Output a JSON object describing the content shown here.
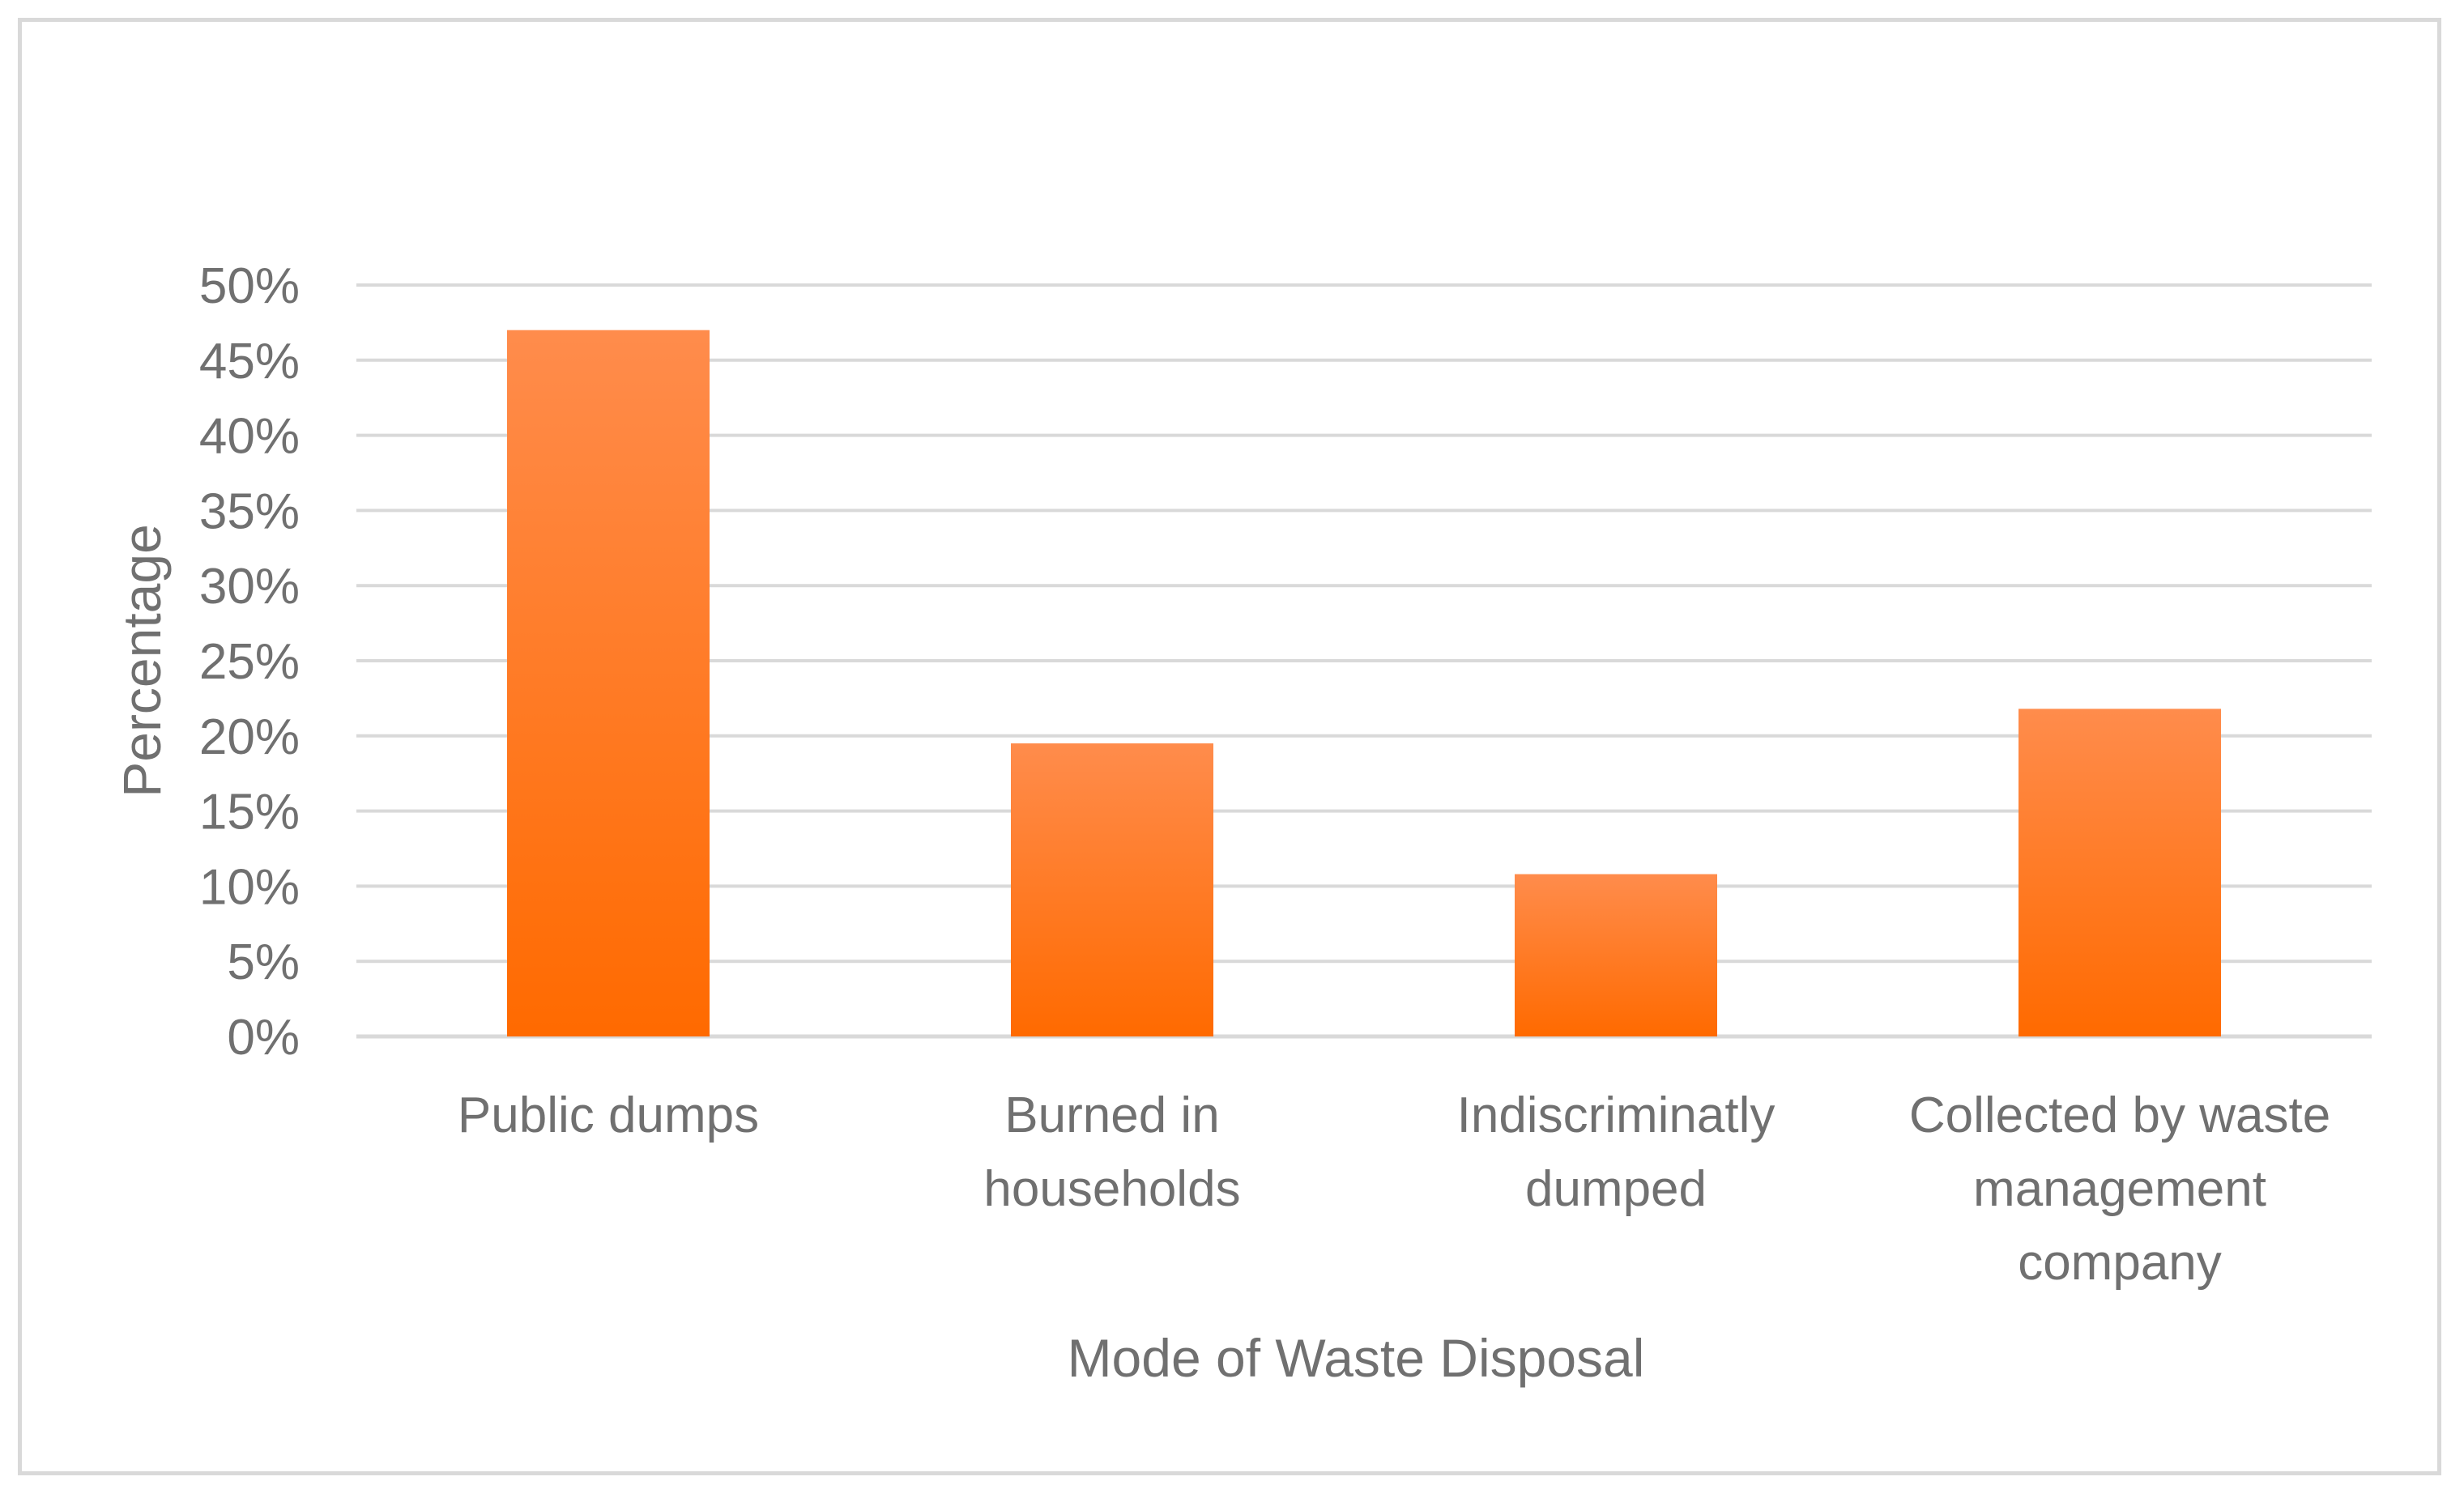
{
  "chart_data": {
    "type": "bar",
    "categories": [
      [
        "Public dumps"
      ],
      [
        "Burned in",
        "households"
      ],
      [
        "Indiscriminatly",
        "dumped"
      ],
      [
        "Collected by waste",
        "management",
        "company"
      ]
    ],
    "values": [
      47,
      19.5,
      10.8,
      21.8
    ],
    "xlabel": "Mode of Waste Disposal",
    "ylabel": "Percentage",
    "ylim": [
      0,
      50
    ],
    "yticks": [
      0,
      5,
      10,
      15,
      20,
      25,
      30,
      35,
      40,
      45,
      50
    ],
    "ytick_suffix": "%",
    "grid": true,
    "legend": "none",
    "colors": {
      "bar_top": "#ff8c4c",
      "bar_bottom": "#ff6a00",
      "grid": "#d9d9d9",
      "text": "#707070",
      "frame": "#d9d9d9"
    }
  }
}
